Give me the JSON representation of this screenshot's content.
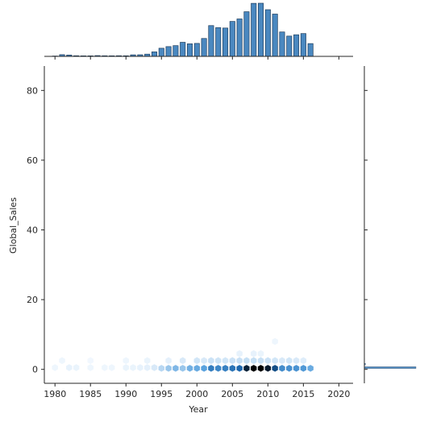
{
  "chart_data": {
    "type": "hexbin-joint",
    "xlabel": "Year",
    "ylabel": "Global_Sales",
    "xlim": [
      1978.5,
      2022
    ],
    "ylim": [
      -4,
      87
    ],
    "x_ticks": [
      1980,
      1985,
      1990,
      1995,
      2000,
      2005,
      2010,
      2015,
      2020
    ],
    "x_tick_labels": [
      "1980",
      "1985",
      "1990",
      "1995",
      "2000",
      "2005",
      "2010",
      "2015",
      "2020"
    ],
    "y_ticks": [
      0,
      20,
      40,
      60,
      80
    ],
    "y_tick_labels": [
      "0",
      "20",
      "40",
      "60",
      "80"
    ],
    "colors": {
      "bar_fill": "#4a88c0",
      "bar_edge": "#1f3d5c",
      "hex_base": "#2b83ba",
      "axis": "#262626"
    },
    "hexbins": [
      {
        "x": 1980,
        "y": 0.5,
        "d": 0.03
      },
      {
        "x": 1982,
        "y": 0.5,
        "d": 0.05
      },
      {
        "x": 1983,
        "y": 0.5,
        "d": 0.04
      },
      {
        "x": 1985,
        "y": 0.5,
        "d": 0.03
      },
      {
        "x": 1987,
        "y": 0.5,
        "d": 0.03
      },
      {
        "x": 1988,
        "y": 0.5,
        "d": 0.03
      },
      {
        "x": 1990,
        "y": 0.5,
        "d": 0.04
      },
      {
        "x": 1991,
        "y": 0.5,
        "d": 0.04
      },
      {
        "x": 1992,
        "y": 0.5,
        "d": 0.05
      },
      {
        "x": 1993,
        "y": 0.5,
        "d": 0.06
      },
      {
        "x": 1994,
        "y": 0.5,
        "d": 0.1
      },
      {
        "x": 1995,
        "y": 0.3,
        "d": 0.2
      },
      {
        "x": 1996,
        "y": 0.3,
        "d": 0.3
      },
      {
        "x": 1997,
        "y": 0.3,
        "d": 0.38
      },
      {
        "x": 1998,
        "y": 0.3,
        "d": 0.3
      },
      {
        "x": 1999,
        "y": 0.3,
        "d": 0.42
      },
      {
        "x": 2000,
        "y": 0.3,
        "d": 0.45
      },
      {
        "x": 2001,
        "y": 0.3,
        "d": 0.5
      },
      {
        "x": 2002,
        "y": 0.3,
        "d": 0.7
      },
      {
        "x": 2003,
        "y": 0.3,
        "d": 0.65
      },
      {
        "x": 2004,
        "y": 0.3,
        "d": 0.68
      },
      {
        "x": 2005,
        "y": 0.3,
        "d": 0.75
      },
      {
        "x": 2006,
        "y": 0.3,
        "d": 0.82
      },
      {
        "x": 2007,
        "y": 0.3,
        "d": 0.95
      },
      {
        "x": 2008,
        "y": 0.3,
        "d": 1.0
      },
      {
        "x": 2009,
        "y": 0.3,
        "d": 1.0
      },
      {
        "x": 2010,
        "y": 0.3,
        "d": 0.96
      },
      {
        "x": 2011,
        "y": 0.3,
        "d": 0.88
      },
      {
        "x": 2012,
        "y": 0.3,
        "d": 0.62
      },
      {
        "x": 2013,
        "y": 0.3,
        "d": 0.6
      },
      {
        "x": 2014,
        "y": 0.3,
        "d": 0.58
      },
      {
        "x": 2015,
        "y": 0.3,
        "d": 0.55
      },
      {
        "x": 2016,
        "y": 0.3,
        "d": 0.45
      },
      {
        "x": 1981,
        "y": 2.5,
        "d": 0.03
      },
      {
        "x": 1985,
        "y": 2.5,
        "d": 0.02
      },
      {
        "x": 1990,
        "y": 2.5,
        "d": 0.03
      },
      {
        "x": 1993,
        "y": 2.5,
        "d": 0.04
      },
      {
        "x": 1996,
        "y": 2.5,
        "d": 0.06
      },
      {
        "x": 1998,
        "y": 2.5,
        "d": 0.1
      },
      {
        "x": 2000,
        "y": 2.5,
        "d": 0.12
      },
      {
        "x": 2001,
        "y": 2.5,
        "d": 0.1
      },
      {
        "x": 2002,
        "y": 2.5,
        "d": 0.14
      },
      {
        "x": 2003,
        "y": 2.5,
        "d": 0.13
      },
      {
        "x": 2004,
        "y": 2.5,
        "d": 0.12
      },
      {
        "x": 2005,
        "y": 2.5,
        "d": 0.14
      },
      {
        "x": 2006,
        "y": 2.5,
        "d": 0.15
      },
      {
        "x": 2007,
        "y": 2.5,
        "d": 0.16
      },
      {
        "x": 2008,
        "y": 2.5,
        "d": 0.16
      },
      {
        "x": 2009,
        "y": 2.5,
        "d": 0.15
      },
      {
        "x": 2010,
        "y": 2.5,
        "d": 0.14
      },
      {
        "x": 2011,
        "y": 2.5,
        "d": 0.12
      },
      {
        "x": 2012,
        "y": 2.5,
        "d": 0.1
      },
      {
        "x": 2013,
        "y": 2.5,
        "d": 0.12
      },
      {
        "x": 2014,
        "y": 2.5,
        "d": 0.1
      },
      {
        "x": 2015,
        "y": 2.5,
        "d": 0.08
      },
      {
        "x": 2006,
        "y": 4.5,
        "d": 0.05
      },
      {
        "x": 2008,
        "y": 4.5,
        "d": 0.05
      },
      {
        "x": 2009,
        "y": 4.5,
        "d": 0.04
      },
      {
        "x": 2011,
        "y": 8.0,
        "d": 0.03
      }
    ],
    "top_histogram": {
      "bins": [
        {
          "x": 1980,
          "count": 9
        },
        {
          "x": 1981,
          "count": 46
        },
        {
          "x": 1982,
          "count": 36
        },
        {
          "x": 1983,
          "count": 17
        },
        {
          "x": 1984,
          "count": 14
        },
        {
          "x": 1985,
          "count": 14
        },
        {
          "x": 1986,
          "count": 21
        },
        {
          "x": 1987,
          "count": 16
        },
        {
          "x": 1988,
          "count": 15
        },
        {
          "x": 1989,
          "count": 17
        },
        {
          "x": 1990,
          "count": 16
        },
        {
          "x": 1991,
          "count": 41
        },
        {
          "x": 1992,
          "count": 43
        },
        {
          "x": 1993,
          "count": 60
        },
        {
          "x": 1994,
          "count": 121
        },
        {
          "x": 1995,
          "count": 219
        },
        {
          "x": 1996,
          "count": 263
        },
        {
          "x": 1997,
          "count": 289
        },
        {
          "x": 1998,
          "count": 379
        },
        {
          "x": 1999,
          "count": 338
        },
        {
          "x": 2000,
          "count": 349
        },
        {
          "x": 2001,
          "count": 482
        },
        {
          "x": 2002,
          "count": 829
        },
        {
          "x": 2003,
          "count": 775
        },
        {
          "x": 2004,
          "count": 763
        },
        {
          "x": 2005,
          "count": 941
        },
        {
          "x": 2006,
          "count": 1008
        },
        {
          "x": 2007,
          "count": 1202
        },
        {
          "x": 2008,
          "count": 1428
        },
        {
          "x": 2009,
          "count": 1431
        },
        {
          "x": 2010,
          "count": 1257
        },
        {
          "x": 2011,
          "count": 1139
        },
        {
          "x": 2012,
          "count": 657
        },
        {
          "x": 2013,
          "count": 546
        },
        {
          "x": 2014,
          "count": 582
        },
        {
          "x": 2015,
          "count": 614
        },
        {
          "x": 2016,
          "count": 344
        },
        {
          "x": 2017,
          "count": 3
        },
        {
          "x": 2020,
          "count": 1
        }
      ]
    },
    "right_histogram": {
      "bins": [
        {
          "y": 0.5,
          "count": 16000
        },
        {
          "y": 1.5,
          "count": 300
        },
        {
          "y": 3.0,
          "count": 80
        },
        {
          "y": 5.0,
          "count": 20
        }
      ]
    }
  }
}
